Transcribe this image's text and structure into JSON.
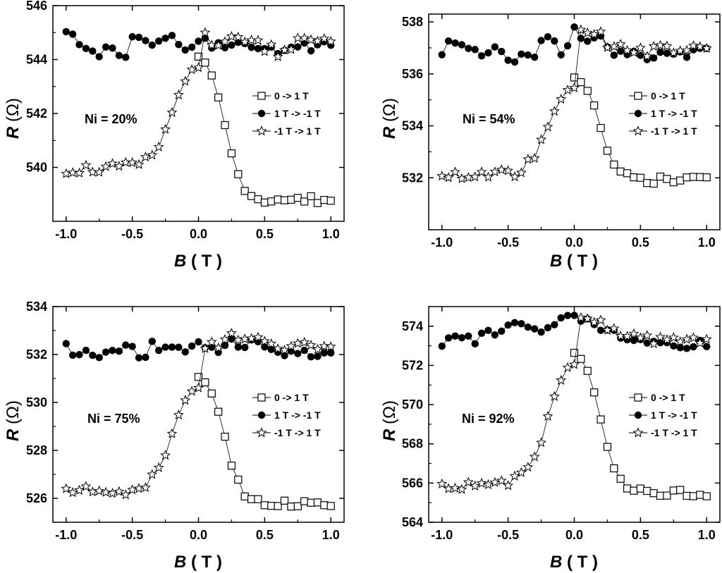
{
  "legend": [
    "0 -> 1 T",
    "1 T -> -1 T",
    "-1 T -> 1 T"
  ],
  "chart_data": [
    {
      "type": "scatter",
      "annotation": "Ni = 20%",
      "xlabel": "B",
      "xunit": "( T )",
      "ylabel": "R",
      "yunit": "(Ω)",
      "xlim": [
        -1.1,
        1.1
      ],
      "ylim": [
        538,
        546
      ],
      "xticks": [
        -1.0,
        -0.5,
        0.0,
        0.5,
        1.0
      ],
      "xtick_labels": [
        "-1.0",
        "-0.5",
        "0.0",
        "0.5",
        "1.0"
      ],
      "yticks": [
        540,
        542,
        544,
        546
      ],
      "ytick_labels": [
        "540",
        "542",
        "544",
        "546"
      ],
      "base": 539.95,
      "peak": 544.1,
      "low0": 538.8,
      "noise": 0.3,
      "top": [
        545.2,
        545.0,
        544.7,
        544.7,
        544.4,
        544.4,
        544.6,
        544.7,
        544.4,
        544.4,
        545.0,
        545.0,
        544.8,
        544.8,
        545.0,
        545.0,
        544.9,
        544.6,
        544.6,
        544.8,
        544.9,
        545.0,
        544.7,
        544.7,
        544.7,
        544.7,
        544.8,
        544.8,
        544.7,
        544.6,
        544.5,
        544.5,
        544.3,
        544.4,
        544.5,
        544.7,
        544.7,
        544.6,
        544.7,
        544.8,
        544.7
      ]
    },
    {
      "type": "scatter",
      "annotation": "Ni = 54%",
      "xlabel": "B",
      "xunit": "( T )",
      "ylabel": "R",
      "yunit": "(Ω)",
      "xlim": [
        -1.1,
        1.1
      ],
      "ylim": [
        530,
        538.3
      ],
      "xticks": [
        -1.0,
        -0.5,
        0.0,
        0.5,
        1.0
      ],
      "xtick_labels": [
        "-1.0",
        "-0.5",
        "0.0",
        "0.5",
        "1.0"
      ],
      "yticks": [
        532,
        534,
        536,
        538
      ],
      "ytick_labels": [
        "532",
        "534",
        "536",
        "538"
      ],
      "base": 532.1,
      "peak": 535.8,
      "low0": 531.9,
      "noise": 0.3,
      "top": [
        536.8,
        537.3,
        537.2,
        537.2,
        537.0,
        537.0,
        536.9,
        537.1,
        537.2,
        536.9,
        536.7,
        536.8,
        536.8,
        536.9,
        537.0,
        537.3,
        537.7,
        537.3,
        537.0,
        537.2,
        537.9,
        537.6,
        537.5,
        537.4,
        537.7,
        537.2,
        537.0,
        537.0,
        536.9,
        536.9,
        536.8,
        536.8,
        536.9,
        537.0,
        537.0,
        537.0,
        536.9,
        536.9,
        537.0,
        537.1,
        537.0
      ]
    },
    {
      "type": "scatter",
      "annotation": "Ni = 75%",
      "xlabel": "B",
      "xunit": "( T )",
      "ylabel": "R",
      "yunit": "(Ω)",
      "xlim": [
        -1.1,
        1.1
      ],
      "ylim": [
        525,
        534
      ],
      "xticks": [
        -1.0,
        -0.5,
        0.0,
        0.5,
        1.0
      ],
      "xtick_labels": [
        "-1.0",
        "-0.5",
        "0.0",
        "0.5",
        "1.0"
      ],
      "yticks": [
        526,
        528,
        530,
        532,
        534
      ],
      "ytick_labels": [
        "526",
        "528",
        "530",
        "532",
        "534"
      ],
      "base": 526.3,
      "peak": 531.05,
      "low0": 525.8,
      "noise": 0.3,
      "top": [
        532.5,
        532.3,
        532.2,
        532.2,
        532.3,
        532.2,
        532.2,
        532.3,
        532.4,
        532.4,
        532.4,
        532.2,
        532.2,
        532.6,
        532.5,
        532.5,
        532.6,
        532.5,
        532.2,
        532.4,
        532.6,
        532.4,
        532.4,
        532.3,
        532.5,
        532.7,
        532.6,
        532.5,
        532.7,
        532.6,
        532.5,
        532.4,
        532.3,
        532.2,
        532.2,
        532.3,
        532.3,
        532.2,
        532.1,
        532.2,
        532.3
      ]
    },
    {
      "type": "scatter",
      "annotation": "Ni = 92%",
      "xlabel": "B",
      "xunit": "( T )",
      "ylabel": "R",
      "yunit": "(Ω)",
      "xlim": [
        -1.1,
        1.1
      ],
      "ylim": [
        564,
        575
      ],
      "xticks": [
        -1.0,
        -0.5,
        0.0,
        0.5,
        1.0
      ],
      "xtick_labels": [
        "-1.0",
        "-0.5",
        "0.0",
        "0.5",
        "1.0"
      ],
      "yticks": [
        564,
        566,
        568,
        570,
        572,
        574
      ],
      "ytick_labels": [
        "564",
        "566",
        "568",
        "570",
        "572",
        "574"
      ],
      "base": 565.9,
      "peak": 572.7,
      "low0": 565.5,
      "noise": 0.35,
      "top": [
        573.4,
        573.5,
        573.7,
        573.6,
        573.5,
        573.5,
        573.8,
        573.9,
        573.9,
        574.0,
        574.2,
        574.3,
        574.2,
        574.1,
        574.1,
        574.0,
        574.3,
        574.4,
        574.5,
        574.6,
        574.6,
        574.6,
        574.5,
        574.3,
        574.1,
        574.0,
        573.9,
        573.7,
        573.6,
        573.5,
        573.4,
        573.4,
        573.3,
        573.3,
        573.3,
        573.3,
        573.2,
        573.2,
        573.2,
        573.3,
        573.2
      ]
    }
  ]
}
